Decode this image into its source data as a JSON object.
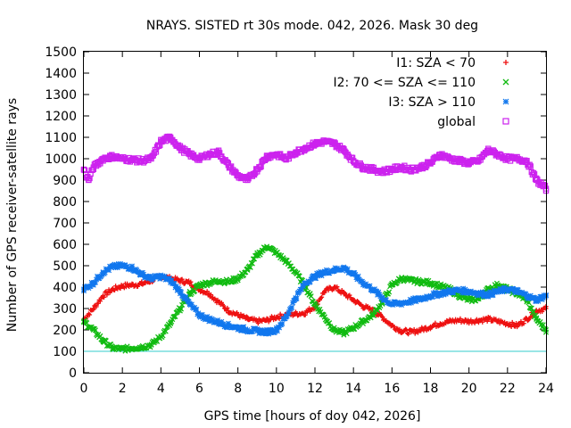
{
  "chart_data": {
    "type": "scatter",
    "title": "NRAYS. SISTED rt 30s mode. 042, 2026. Mask 30 deg",
    "xlabel": "GPS time [hours of doy 042, 2026]",
    "ylabel": "Number of GPS receiver-satellite rays",
    "xlim": [
      0,
      24
    ],
    "ylim": [
      0,
      1500
    ],
    "x_ticks": [
      "0",
      "2",
      "4",
      "6",
      "8",
      "10",
      "12",
      "14",
      "16",
      "18",
      "20",
      "22",
      "24"
    ],
    "y_ticks": [
      "0",
      "100",
      "200",
      "300",
      "400",
      "500",
      "600",
      "700",
      "800",
      "900",
      "1000",
      "1100",
      "1200",
      "1300",
      "1400",
      "1500"
    ],
    "grid": false,
    "legend_position": "top-right",
    "reference_line": {
      "y": 100,
      "color": "#33cccc"
    },
    "series": [
      {
        "name": "I1: SZA < 70",
        "marker": "+",
        "color": "#ee1111",
        "x": [
          0,
          0.5,
          1,
          1.5,
          2,
          2.5,
          3,
          3.5,
          4,
          4.5,
          5,
          5.5,
          6,
          6.5,
          7,
          7.5,
          8,
          8.5,
          9,
          9.5,
          10,
          10.5,
          11,
          11.5,
          12,
          12.5,
          13,
          13.5,
          14,
          14.5,
          15,
          15.5,
          16,
          16.5,
          17,
          17.5,
          18,
          18.5,
          19,
          19.5,
          20,
          20.5,
          21,
          21.5,
          22,
          22.5,
          23,
          23.5,
          24
        ],
        "values": [
          250,
          300,
          360,
          390,
          405,
          410,
          415,
          430,
          450,
          440,
          430,
          420,
          390,
          370,
          330,
          290,
          270,
          250,
          240,
          245,
          260,
          270,
          275,
          280,
          310,
          380,
          400,
          370,
          340,
          310,
          290,
          260,
          220,
          195,
          190,
          200,
          215,
          230,
          240,
          245,
          240,
          245,
          250,
          240,
          230,
          220,
          250,
          290,
          300
        ]
      },
      {
        "name": "I2: 70 <= SZA <= 110",
        "marker": "x",
        "color": "#11bb11",
        "x": [
          0,
          0.5,
          1,
          1.5,
          2,
          2.5,
          3,
          3.5,
          4,
          4.5,
          5,
          5.5,
          6,
          6.5,
          7,
          7.5,
          8,
          8.5,
          9,
          9.5,
          10,
          10.5,
          11,
          11.5,
          12,
          12.5,
          13,
          13.5,
          14,
          14.5,
          15,
          15.5,
          16,
          16.5,
          17,
          17.5,
          18,
          18.5,
          19,
          19.5,
          20,
          20.5,
          21,
          21.5,
          22,
          22.5,
          23,
          23.5,
          24
        ],
        "values": [
          240,
          200,
          150,
          115,
          110,
          115,
          120,
          130,
          170,
          230,
          300,
          370,
          410,
          420,
          430,
          425,
          440,
          480,
          550,
          590,
          560,
          520,
          470,
          400,
          320,
          260,
          200,
          185,
          210,
          240,
          270,
          330,
          410,
          440,
          430,
          425,
          420,
          405,
          390,
          360,
          340,
          345,
          390,
          410,
          390,
          370,
          340,
          250,
          200
        ]
      },
      {
        "name": "I3: SZA > 110",
        "marker": "*",
        "color": "#1177ee",
        "x": [
          0,
          0.5,
          1,
          1.5,
          2,
          2.5,
          3,
          3.5,
          4,
          4.5,
          5,
          5.5,
          6,
          6.5,
          7,
          7.5,
          8,
          8.5,
          9,
          9.5,
          10,
          10.5,
          11,
          11.5,
          12,
          12.5,
          13,
          13.5,
          14,
          14.5,
          15,
          15.5,
          16,
          16.5,
          17,
          17.5,
          18,
          18.5,
          19,
          19.5,
          20,
          20.5,
          21,
          21.5,
          22,
          22.5,
          23,
          23.5,
          24
        ],
        "values": [
          390,
          420,
          470,
          495,
          500,
          490,
          460,
          440,
          450,
          430,
          380,
          320,
          270,
          250,
          235,
          220,
          210,
          200,
          195,
          190,
          200,
          260,
          350,
          420,
          450,
          470,
          480,
          490,
          460,
          420,
          390,
          350,
          320,
          325,
          335,
          345,
          360,
          370,
          380,
          385,
          380,
          370,
          365,
          380,
          390,
          380,
          360,
          340,
          360
        ]
      },
      {
        "name": "global",
        "marker": "square",
        "color": "#cc22ee",
        "x": [
          0,
          0.25,
          0.5,
          1,
          1.5,
          2,
          2.5,
          3,
          3.5,
          4,
          4.5,
          5,
          5.5,
          6,
          6.5,
          7,
          7.5,
          8,
          8.5,
          9,
          9.5,
          10,
          10.5,
          11,
          11.5,
          12,
          12.5,
          13,
          13.5,
          14,
          14.5,
          15,
          15.5,
          16,
          16.5,
          17,
          17.5,
          18,
          18.5,
          19,
          19.5,
          20,
          20.5,
          21,
          21.5,
          22,
          22.5,
          23,
          23.5,
          24
        ],
        "values": [
          950,
          900,
          960,
          1000,
          1010,
          1000,
          995,
          990,
          1000,
          1080,
          1100,
          1050,
          1020,
          1000,
          1020,
          1030,
          970,
          920,
          900,
          950,
          1010,
          1020,
          1000,
          1030,
          1050,
          1070,
          1080,
          1070,
          1040,
          990,
          960,
          950,
          940,
          950,
          960,
          950,
          960,
          980,
          1020,
          1000,
          990,
          980,
          990,
          1040,
          1020,
          1000,
          1000,
          990,
          900,
          860
        ]
      }
    ]
  }
}
